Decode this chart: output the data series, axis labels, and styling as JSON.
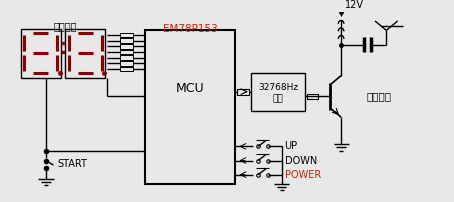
{
  "bg_color": "#e8e8e8",
  "line_color": "#000000",
  "seg_color": "#8b0000",
  "label_color_black": "#000000",
  "label_color_red": "#cc2200",
  "text_time_display": "时间显示",
  "text_mcu_label": "EM78P153",
  "text_mcu": "MCU",
  "text_modulator_1": "32768Hz",
  "text_modulator_2": "调制",
  "text_hf": "高频发射",
  "text_start": "START",
  "text_up": "UP",
  "text_down": "DOWN",
  "text_power": "POWER",
  "text_12v": "12V",
  "figsize": [
    4.54,
    2.02
  ],
  "dpi": 100
}
